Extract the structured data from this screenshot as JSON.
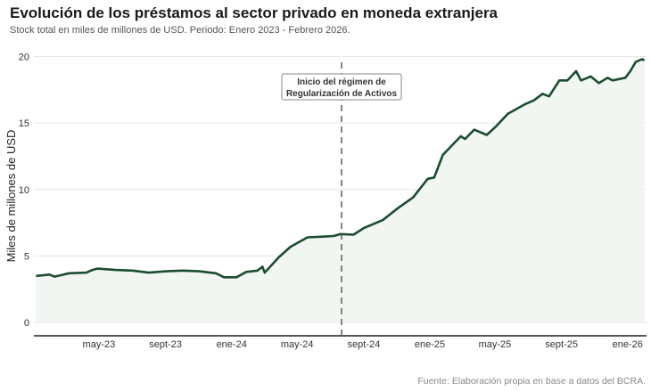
{
  "chart_data": {
    "type": "area",
    "title": "Evolución de los préstamos al sector privado en moneda extranjera",
    "subtitle": "Stock total en miles de millones de USD. Periodo: Enero 2023 - Febrero 2026.",
    "ylabel": "Miles de millones de USD",
    "xlabel": "",
    "source": "Fuente: Elaboración propia en base a datos del BCRA.",
    "ylim": [
      -1,
      20.7
    ],
    "xlim": [
      "2023-01-01",
      "2026-02-05"
    ],
    "yticks": [
      0,
      5,
      10,
      15,
      20
    ],
    "xticks": [
      {
        "date": "2023-05-01",
        "label": "may-23"
      },
      {
        "date": "2023-09-01",
        "label": "sept-23"
      },
      {
        "date": "2024-01-01",
        "label": "ene-24"
      },
      {
        "date": "2024-05-01",
        "label": "may-24"
      },
      {
        "date": "2024-09-01",
        "label": "sept-24"
      },
      {
        "date": "2025-01-01",
        "label": "ene-25"
      },
      {
        "date": "2025-05-01",
        "label": "may-25"
      },
      {
        "date": "2025-09-01",
        "label": "sept-25"
      },
      {
        "date": "2026-01-01",
        "label": "ene-26"
      }
    ],
    "grid": true,
    "line_color": "#1b4d2e",
    "fill_color": "#f1f6f3",
    "annotation": {
      "date": "2024-07-22",
      "lines": [
        "Inicio del régimen de",
        "Regularización de Activos"
      ]
    },
    "x": [
      "2023-01-05",
      "2023-01-30",
      "2023-02-08",
      "2023-03-07",
      "2023-04-08",
      "2023-04-19",
      "2023-04-28",
      "2023-06-01",
      "2023-07-02",
      "2023-08-01",
      "2023-09-02",
      "2023-10-03",
      "2023-11-02",
      "2023-12-03",
      "2023-12-18",
      "2024-01-10",
      "2024-01-28",
      "2024-02-18",
      "2024-02-27",
      "2024-03-02",
      "2024-03-28",
      "2024-04-19",
      "2024-05-20",
      "2024-06-13",
      "2024-07-07",
      "2024-07-20",
      "2024-08-13",
      "2024-09-01",
      "2024-10-06",
      "2024-11-03",
      "2024-12-01",
      "2024-12-28",
      "2025-01-09",
      "2025-01-25",
      "2025-02-27",
      "2025-03-07",
      "2025-03-24",
      "2025-04-16",
      "2025-05-02",
      "2025-05-25",
      "2025-06-25",
      "2025-07-12",
      "2025-07-28",
      "2025-08-09",
      "2025-08-28",
      "2025-09-12",
      "2025-09-28",
      "2025-10-07",
      "2025-10-25",
      "2025-11-09",
      "2025-11-25",
      "2025-12-04",
      "2025-12-28",
      "2026-01-06",
      "2026-01-16",
      "2026-01-28",
      "2026-02-01"
    ],
    "values": [
      3.5,
      3.6,
      3.45,
      3.7,
      3.75,
      3.95,
      4.05,
      3.95,
      3.9,
      3.75,
      3.85,
      3.9,
      3.85,
      3.7,
      3.4,
      3.4,
      3.8,
      3.9,
      4.2,
      3.75,
      4.9,
      5.7,
      6.4,
      6.45,
      6.5,
      6.65,
      6.6,
      7.1,
      7.7,
      8.6,
      9.4,
      10.8,
      10.9,
      12.6,
      14.0,
      13.8,
      14.5,
      14.1,
      14.7,
      15.7,
      16.4,
      16.7,
      17.2,
      17.0,
      18.2,
      18.2,
      18.9,
      18.2,
      18.5,
      18.0,
      18.4,
      18.2,
      18.4,
      18.9,
      19.6,
      19.8,
      19.7
    ]
  }
}
